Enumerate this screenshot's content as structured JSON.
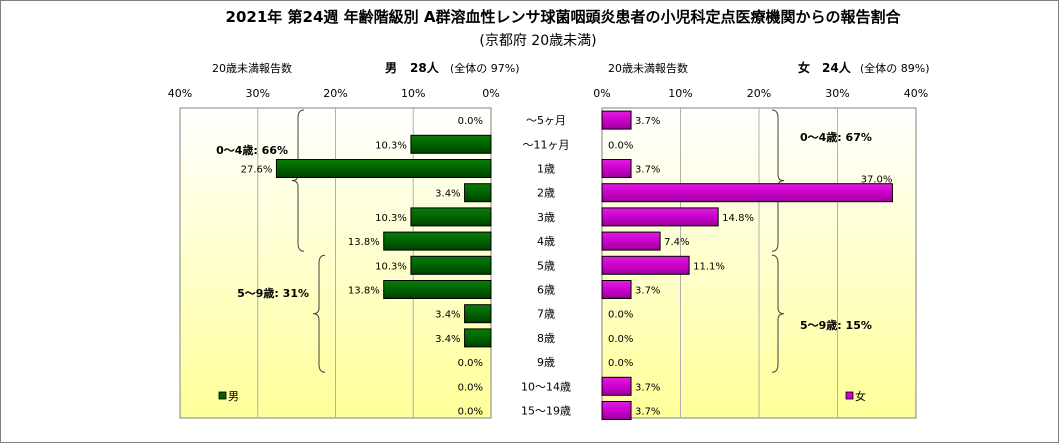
{
  "chart_data": {
    "type": "bar",
    "title": "2021年 第24週 年齢階級別 A群溶血性レンサ球菌咽頭炎患者の小児科定点医療機関からの報告割合",
    "subtitle": "(京都府 20歳未満)",
    "categories": [
      "～5ヶ月",
      "～11ヶ月",
      "1歳",
      "2歳",
      "3歳",
      "4歳",
      "5歳",
      "6歳",
      "7歳",
      "8歳",
      "9歳",
      "10～14歳",
      "15～19歳"
    ],
    "xlim": [
      0,
      40
    ],
    "ticks": [
      "0%",
      "10%",
      "20%",
      "30%",
      "40%"
    ],
    "grid": true,
    "series": [
      {
        "name": "男",
        "side": "left",
        "color": "#006400",
        "values": [
          0.0,
          10.3,
          27.6,
          3.4,
          10.3,
          13.8,
          10.3,
          13.8,
          3.4,
          3.4,
          0.0,
          0.0,
          0.0
        ],
        "value_labels": [
          "0.0%",
          "10.3%",
          "27.6%",
          "3.4%",
          "10.3%",
          "13.8%",
          "10.3%",
          "13.8%",
          "3.4%",
          "3.4%",
          "0.0%",
          "0.0%",
          "0.0%"
        ],
        "header_label": "20歳未満報告数",
        "header_name": "男",
        "header_count": "28人",
        "header_share": "(全体の 97%)",
        "groups": [
          {
            "label": "0～4歳: 66%",
            "from": 0,
            "to": 5
          },
          {
            "label": "5～9歳: 31%",
            "from": 6,
            "to": 10
          }
        ]
      },
      {
        "name": "女",
        "side": "right",
        "color": "#cc00cc",
        "values": [
          3.7,
          0.0,
          3.7,
          37.0,
          14.8,
          7.4,
          11.1,
          3.7,
          0.0,
          0.0,
          0.0,
          3.7,
          3.7
        ],
        "value_labels": [
          "3.7%",
          "0.0%",
          "3.7%",
          "37.0%",
          "14.8%",
          "7.4%",
          "11.1%",
          "3.7%",
          "0.0%",
          "0.0%",
          "0.0%",
          "3.7%",
          "3.7%"
        ],
        "header_label": "20歳未満報告数",
        "header_name": "女",
        "header_count": "24人",
        "header_share": "(全体の 89%)",
        "groups": [
          {
            "label": "0～4歳: 67%",
            "from": 0,
            "to": 5
          },
          {
            "label": "5～9歳: 15%",
            "from": 6,
            "to": 10
          }
        ]
      }
    ],
    "legend": [
      {
        "name": "男",
        "color": "#006400",
        "position": "bottom-left"
      },
      {
        "name": "女",
        "color": "#cc00cc",
        "position": "bottom-right"
      }
    ]
  }
}
